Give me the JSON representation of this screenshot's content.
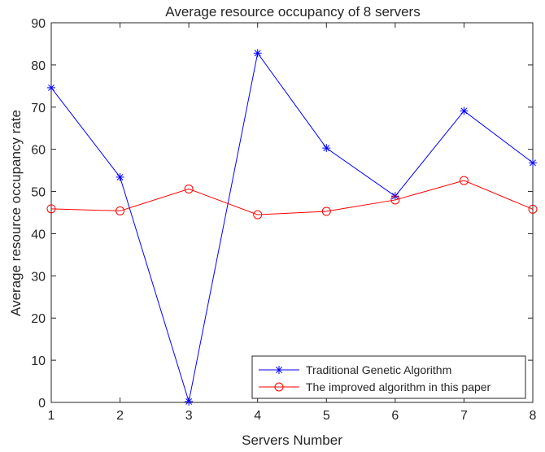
{
  "chart_data": {
    "type": "line",
    "title": "Average resource occupancy of 8 servers",
    "xlabel": "Servers Number",
    "ylabel": "Average resource occupancy rate",
    "x": [
      1,
      2,
      3,
      4,
      5,
      6,
      7,
      8
    ],
    "xlim": [
      1,
      8
    ],
    "ylim": [
      0,
      90
    ],
    "xticks": [
      "1",
      "2",
      "3",
      "4",
      "5",
      "6",
      "7",
      "8"
    ],
    "yticks": [
      "0",
      "10",
      "20",
      "30",
      "40",
      "50",
      "60",
      "70",
      "80",
      "90"
    ],
    "grid": false,
    "legend_position": "bottom-right",
    "series": [
      {
        "name": "Traditional Genetic Algorithm",
        "color": "#0000ff",
        "marker": "asterisk",
        "values": [
          74.6,
          53.4,
          0.2,
          82.8,
          60.3,
          48.9,
          69.1,
          56.8
        ]
      },
      {
        "name": "The improved algorithm in this paper",
        "color": "#ff0000",
        "marker": "circle",
        "values": [
          45.9,
          45.4,
          50.6,
          44.5,
          45.3,
          48.0,
          52.6,
          45.8
        ]
      }
    ]
  }
}
